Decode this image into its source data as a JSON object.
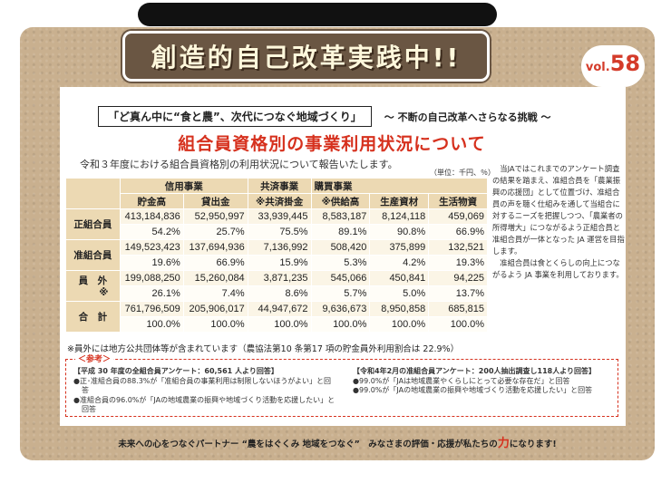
{
  "header": {
    "banner_title": "創造的自己改革実践中!!",
    "vol_prefix": "vol.",
    "vol_number": "58"
  },
  "article": {
    "boxed_title": "「ど真ん中に“食と農”、次代につなぐ地域づくり」",
    "tagline": "～ 不断の自己改革へさらなる挑戦 ～",
    "main_title": "組合員資格別の事業利用状況について",
    "intro": "令和３年度における組合員資格別の利用状況について報告いたします。",
    "unit_note": "（単位：千円、％）"
  },
  "table": {
    "groups": [
      "信用事業",
      "共済事業",
      "購買事業"
    ],
    "columns": [
      "貯金高",
      "貸出金",
      "※共済掛金",
      "※供給高",
      "生産資材",
      "生活物資"
    ],
    "rows": [
      {
        "label": "正組合員",
        "values": [
          "413,184,836",
          "52,950,997",
          "33,939,445",
          "8,583,187",
          "8,124,118",
          "459,069"
        ],
        "ratios": [
          "54.2%",
          "25.7%",
          "75.5%",
          "89.1%",
          "90.8%",
          "66.9%"
        ]
      },
      {
        "label": "准組合員",
        "values": [
          "149,523,423",
          "137,694,936",
          "7,136,992",
          "508,420",
          "375,899",
          "132,521"
        ],
        "ratios": [
          "19.6%",
          "66.9%",
          "15.9%",
          "5.3%",
          "4.2%",
          "19.3%"
        ]
      },
      {
        "label": "員　外",
        "label_note": "※",
        "values": [
          "199,088,250",
          "15,260,084",
          "3,871,235",
          "545,066",
          "450,841",
          "94,225"
        ],
        "ratios": [
          "26.1%",
          "7.4%",
          "8.6%",
          "5.7%",
          "5.0%",
          "13.7%"
        ]
      },
      {
        "label": "合　計",
        "values": [
          "761,796,509",
          "205,906,017",
          "44,947,672",
          "9,636,673",
          "8,950,858",
          "685,815"
        ],
        "ratios": [
          "100.0%",
          "100.0%",
          "100.0%",
          "100.0%",
          "100.0%",
          "100.0%"
        ]
      }
    ]
  },
  "side_text": {
    "p1": "当JAではこれまでのアンケート調査の結果を踏まえ、准組合員を「農業振興の応援団」として位置づけ、准組合員の声を聴く仕組みを通して当組合に対するニーズを把握しつつ、「農業者の所得増大」につながるよう正組合員と准組合員が一体となった JA 運営を目指します。",
    "p2": "准組合員は食とくらしの向上につながるよう JA 事業を利用しております。"
  },
  "footnote": "※員外には地方公共団体等が含まれています（農協法第10 条第17 項の貯金員外利用割合は 22.9%）",
  "reference": {
    "label": "＜参考＞",
    "left_head": "【平成 30 年度の全組合員アンケート：60,561 人より回答】",
    "left_items": [
      "●正･准組合員の88.3%が「准組合員の事業利用は制限しないほうがよい」と回答",
      "●准組合員の96.0%が「JAの地域農業の振興や地域づくり活動を応援したい」と回答"
    ],
    "right_head": "【令和4年2月の准組合員アンケート：200人抽出調査し118人より回答】",
    "right_items": [
      "●99.0%が「JAは地域農業やくらしにとって必要な存在だ」と回答",
      "●99.0%が「JAの地域農業の振興や地域づくり活動を応援したい」と回答"
    ]
  },
  "bottom": {
    "slogan_pre": "未来への心をつなぐパートナー “農をはぐくみ 地域をつなぐ”　みなさまの評価・応援が私たちの",
    "slogan_emph": "力",
    "slogan_post": "になります!"
  },
  "colors": {
    "accent_red": "#d6311e",
    "header_tan": "#ecd9b3",
    "board": "#c9b08f"
  }
}
